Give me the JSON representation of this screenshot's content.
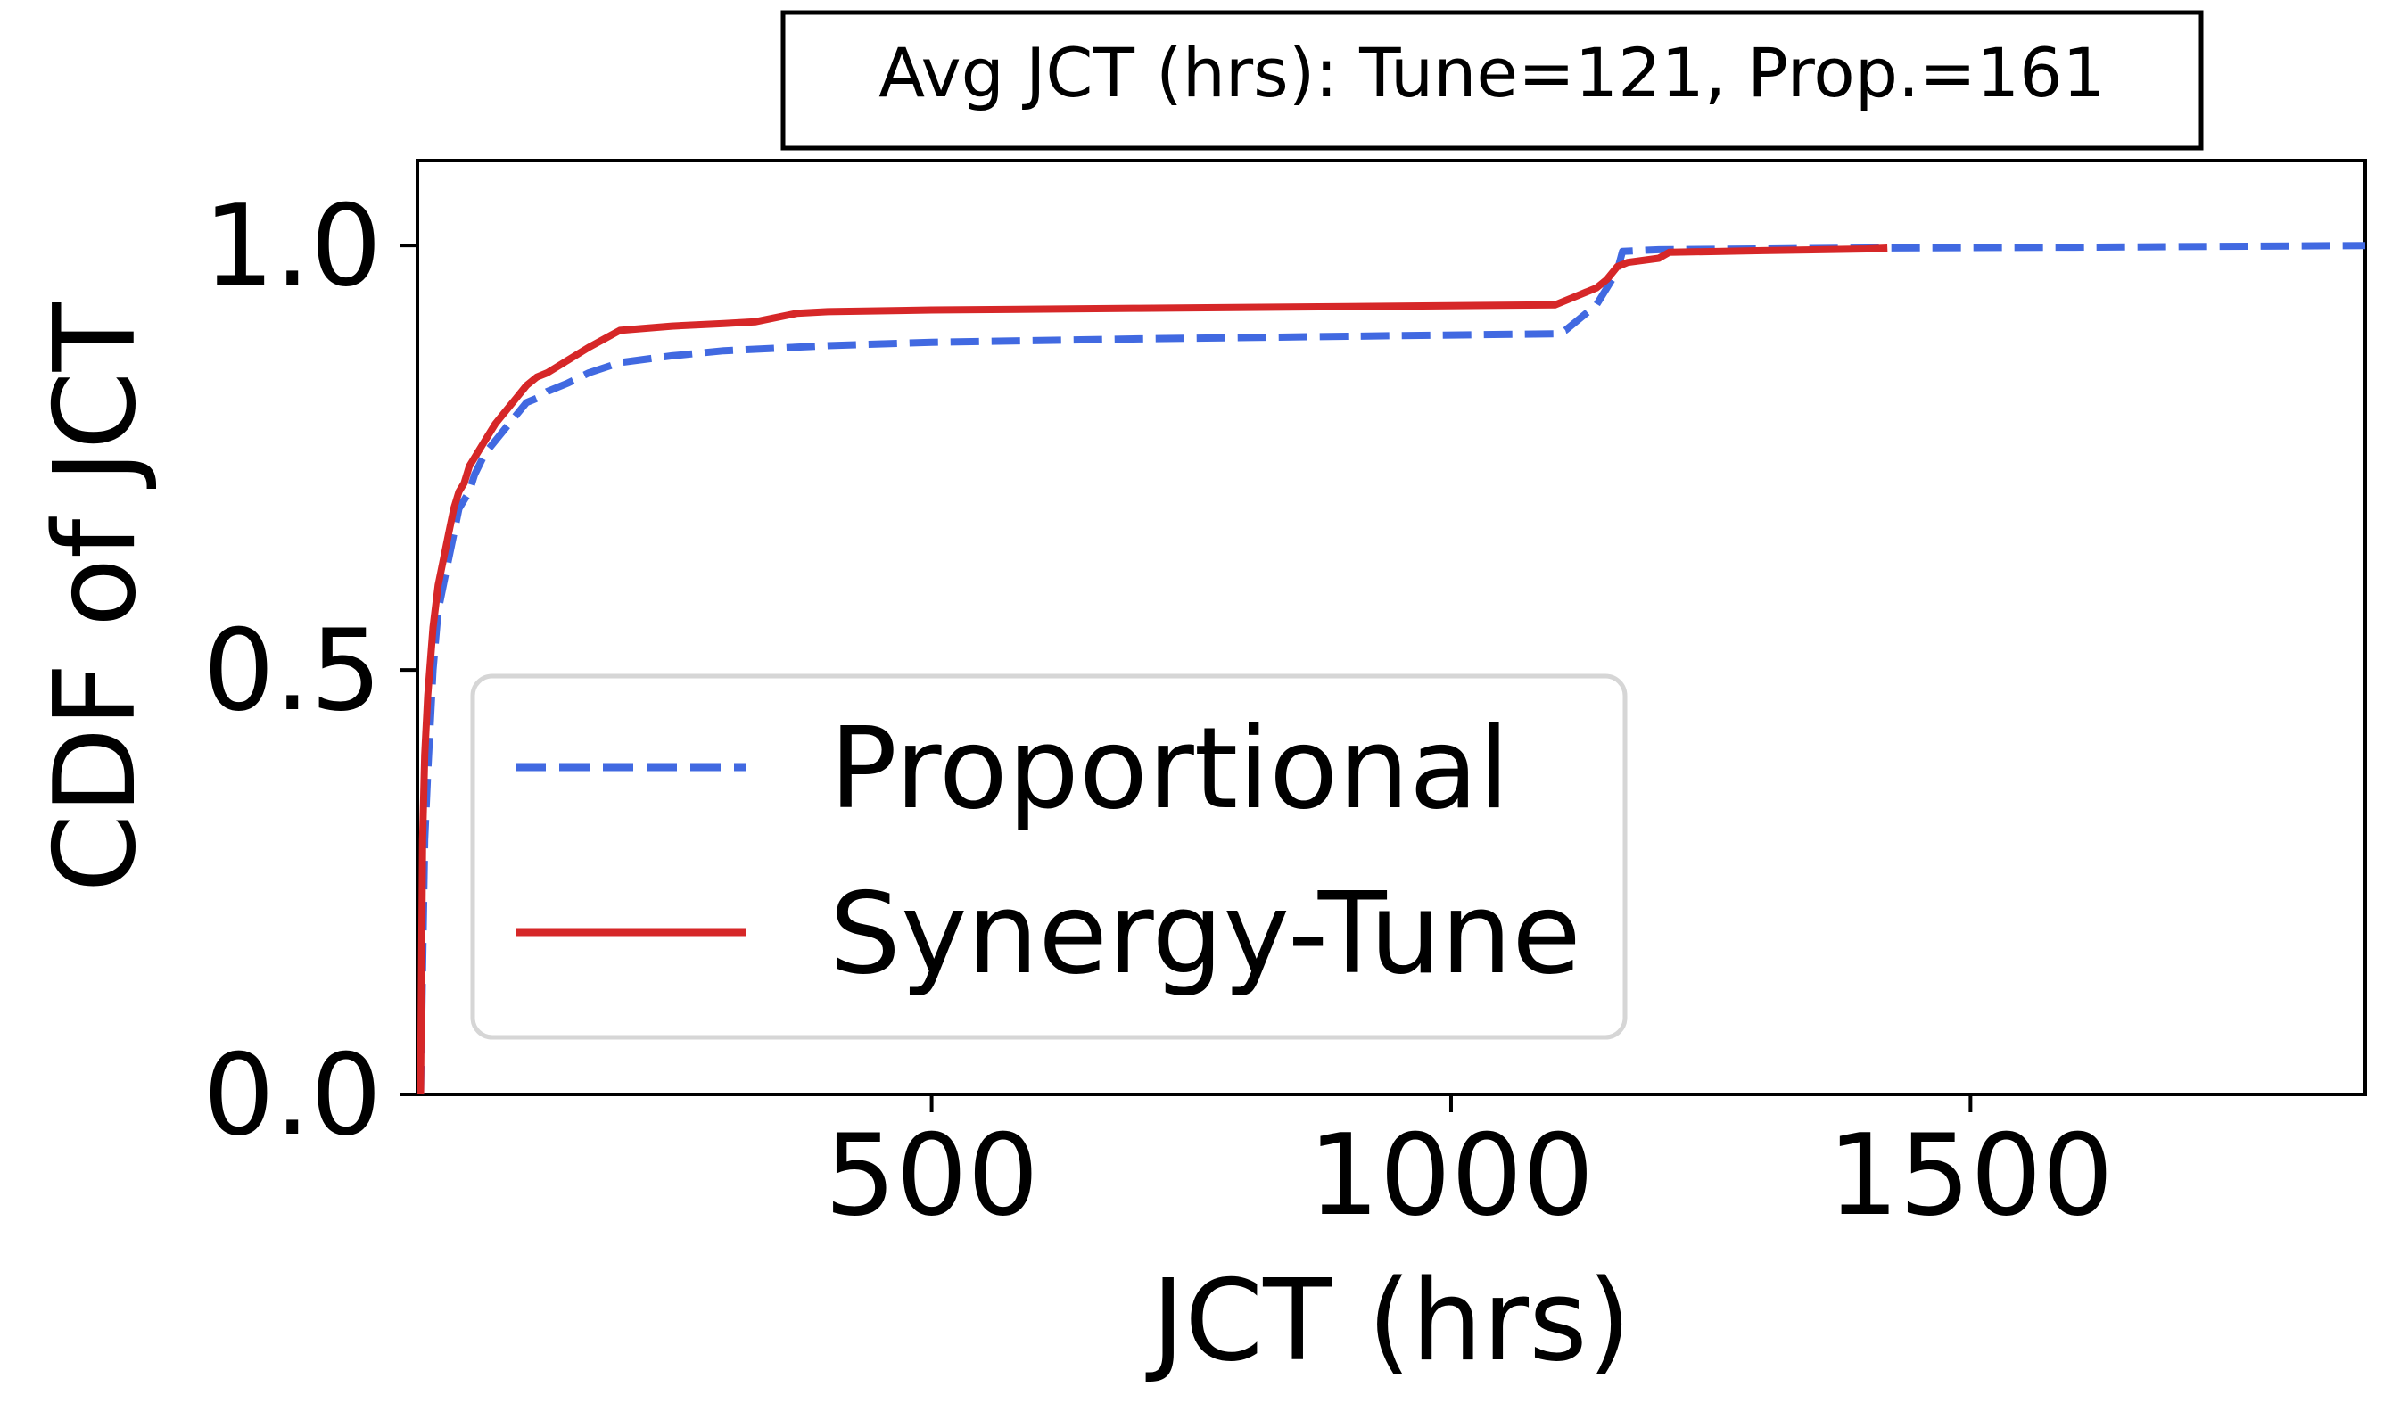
{
  "chart_data": {
    "type": "line",
    "title": "Avg JCT (hrs): Tune=121, Prop.=161",
    "xlabel": "JCT (hrs)",
    "ylabel": "CDF of JCT",
    "xlim": [
      5,
      1880
    ],
    "ylim": [
      0,
      1.1
    ],
    "xticks": [
      500,
      1000,
      1500
    ],
    "xtick_labels": [
      "500",
      "1000",
      "1500"
    ],
    "yticks": [
      0,
      0.5,
      1.0
    ],
    "ytick_labels": [
      "0.0",
      "0.5",
      "1.0"
    ],
    "grid": false,
    "legend": "center-left",
    "series": [
      {
        "name": "Proportional",
        "color": "#4169e1",
        "style": "dashed",
        "x": [
          8,
          10,
          12,
          15,
          20,
          25,
          30,
          35,
          40,
          45,
          50,
          55,
          60,
          70,
          80,
          90,
          100,
          110,
          120,
          130,
          150,
          170,
          200,
          250,
          300,
          400,
          500,
          700,
          900,
          1100,
          1110,
          1120,
          1130,
          1140,
          1150,
          1160,
          1165,
          1180,
          1200,
          1300,
          1400,
          1600,
          1880
        ],
        "y": [
          0.0,
          0.15,
          0.3,
          0.38,
          0.5,
          0.57,
          0.6,
          0.63,
          0.66,
          0.69,
          0.7,
          0.71,
          0.73,
          0.755,
          0.77,
          0.785,
          0.8,
          0.815,
          0.82,
          0.828,
          0.838,
          0.85,
          0.862,
          0.87,
          0.876,
          0.882,
          0.886,
          0.89,
          0.893,
          0.896,
          0.9,
          0.91,
          0.92,
          0.93,
          0.95,
          0.97,
          0.993,
          0.994,
          0.995,
          0.996,
          0.997,
          0.998,
          1.0
        ]
      },
      {
        "name": "Synergy-Tune",
        "color": "#d62728",
        "style": "solid",
        "x": [
          8,
          10,
          12,
          15,
          20,
          25,
          30,
          35,
          40,
          45,
          50,
          55,
          60,
          70,
          80,
          90,
          100,
          110,
          120,
          130,
          150,
          170,
          200,
          250,
          300,
          330,
          350,
          370,
          400,
          500,
          700,
          900,
          1100,
          1110,
          1120,
          1130,
          1140,
          1150,
          1160,
          1170,
          1200,
          1210,
          1300,
          1400,
          1420
        ],
        "y": [
          0.0,
          0.3,
          0.4,
          0.47,
          0.55,
          0.6,
          0.63,
          0.66,
          0.69,
          0.71,
          0.72,
          0.74,
          0.75,
          0.77,
          0.79,
          0.805,
          0.82,
          0.835,
          0.845,
          0.85,
          0.865,
          0.88,
          0.9,
          0.905,
          0.908,
          0.91,
          0.915,
          0.92,
          0.922,
          0.924,
          0.926,
          0.928,
          0.93,
          0.935,
          0.94,
          0.945,
          0.95,
          0.96,
          0.975,
          0.98,
          0.985,
          0.992,
          0.994,
          0.996,
          0.997
        ]
      }
    ]
  }
}
